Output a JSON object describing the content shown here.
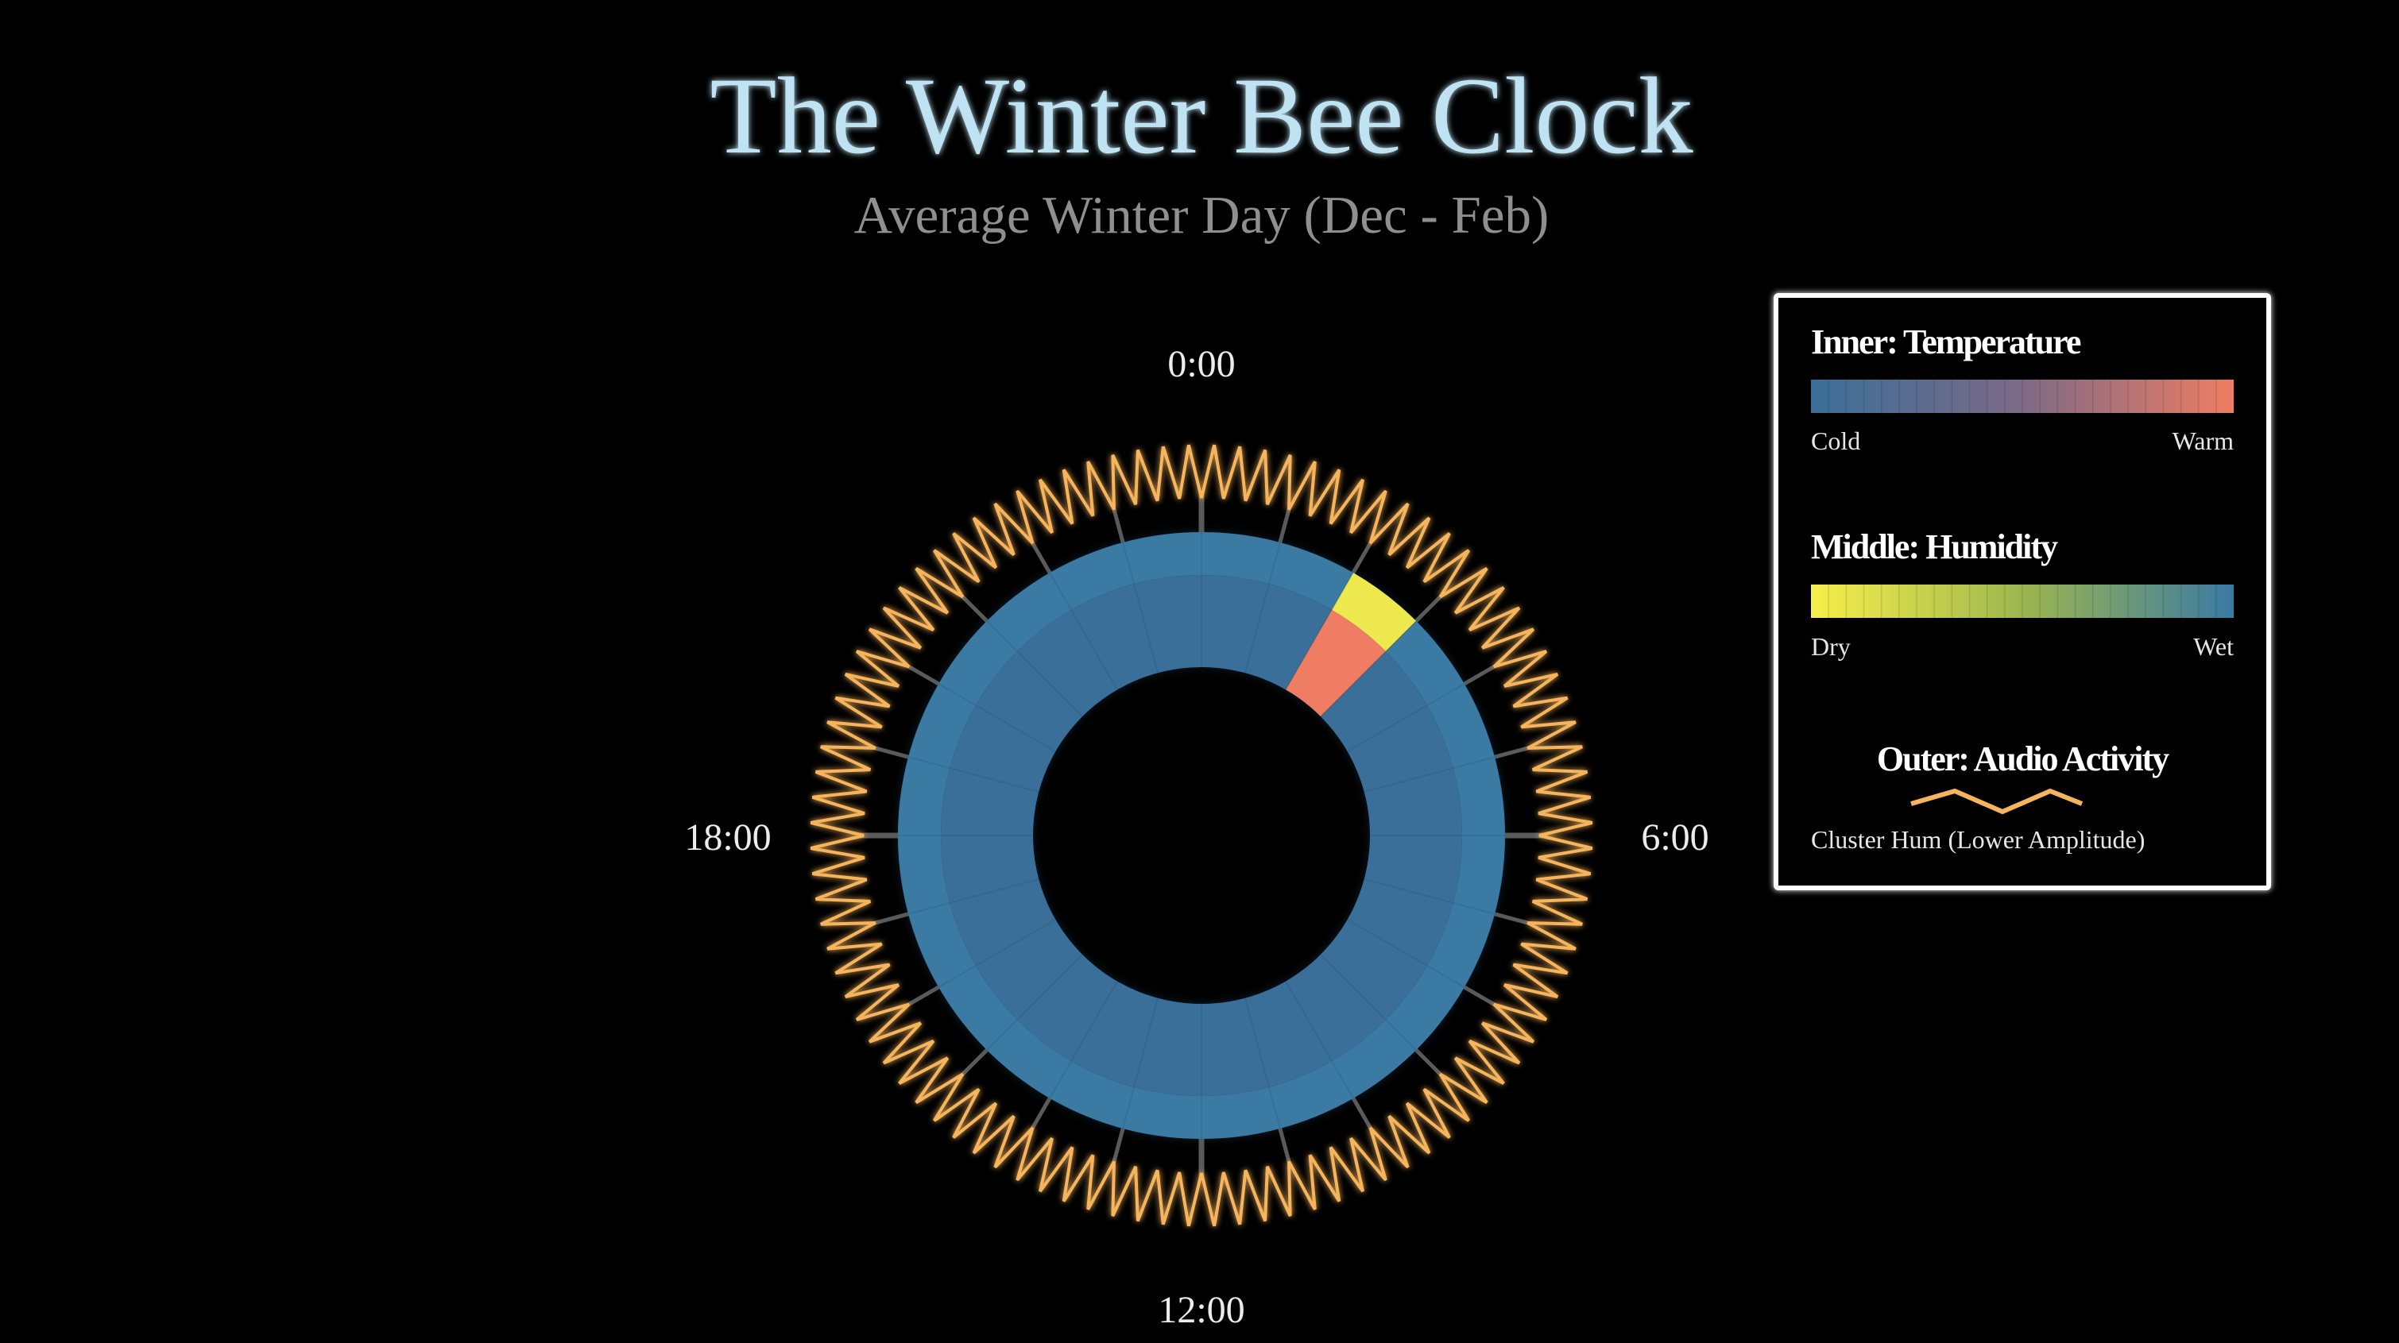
{
  "colors": {
    "background": "#000000",
    "title": "#bfe3f3",
    "subtitle": "#8f8f8f",
    "ring_base": "#2e5a7e",
    "temperature_cold": "#3a6f99",
    "temperature_warm": "#ef7d63",
    "humidity_dry": "#f7ef4a",
    "humidity_wet": "#3a7aa3",
    "audio_line": "#f6b45d",
    "legend_border": "#ffffff"
  },
  "chart_data": {
    "type": "radial",
    "title": "The Winter Bee Clock",
    "subtitle": "Average Winter Day (Dec - Feb)",
    "hour_labels": [
      "0:00",
      "6:00",
      "12:00",
      "18:00"
    ],
    "hours_per_revolution": 24,
    "inner_ring": {
      "name": "Temperature",
      "scale": [
        0,
        1
      ],
      "segments": [
        {
          "start_hour": 0,
          "end_hour": 2,
          "value": 0
        },
        {
          "start_hour": 2,
          "end_hour": 3,
          "value": 1
        },
        {
          "start_hour": 3,
          "end_hour": 24,
          "value": 0
        }
      ]
    },
    "middle_ring": {
      "name": "Humidity",
      "scale": [
        0,
        1
      ],
      "segments": [
        {
          "start_hour": 0,
          "end_hour": 2,
          "value": 1
        },
        {
          "start_hour": 2,
          "end_hour": 3,
          "value": 0.05
        },
        {
          "start_hour": 3,
          "end_hour": 24,
          "value": 1
        }
      ]
    },
    "outer_ring": {
      "name": "Audio Activity",
      "series": "Cluster Hum (Lower Amplitude)",
      "oscillations_per_day": 96,
      "amplitude": "low"
    },
    "legend": {
      "position": "right",
      "temperature_title": "Inner: Temperature",
      "temperature_low": "Cold",
      "temperature_high": "Warm",
      "humidity_title": "Middle: Humidity",
      "humidity_low": "Dry",
      "humidity_high": "Wet",
      "audio_title": "Outer: Audio Activity",
      "audio_label": "Cluster Hum (Lower Amplitude)"
    }
  }
}
